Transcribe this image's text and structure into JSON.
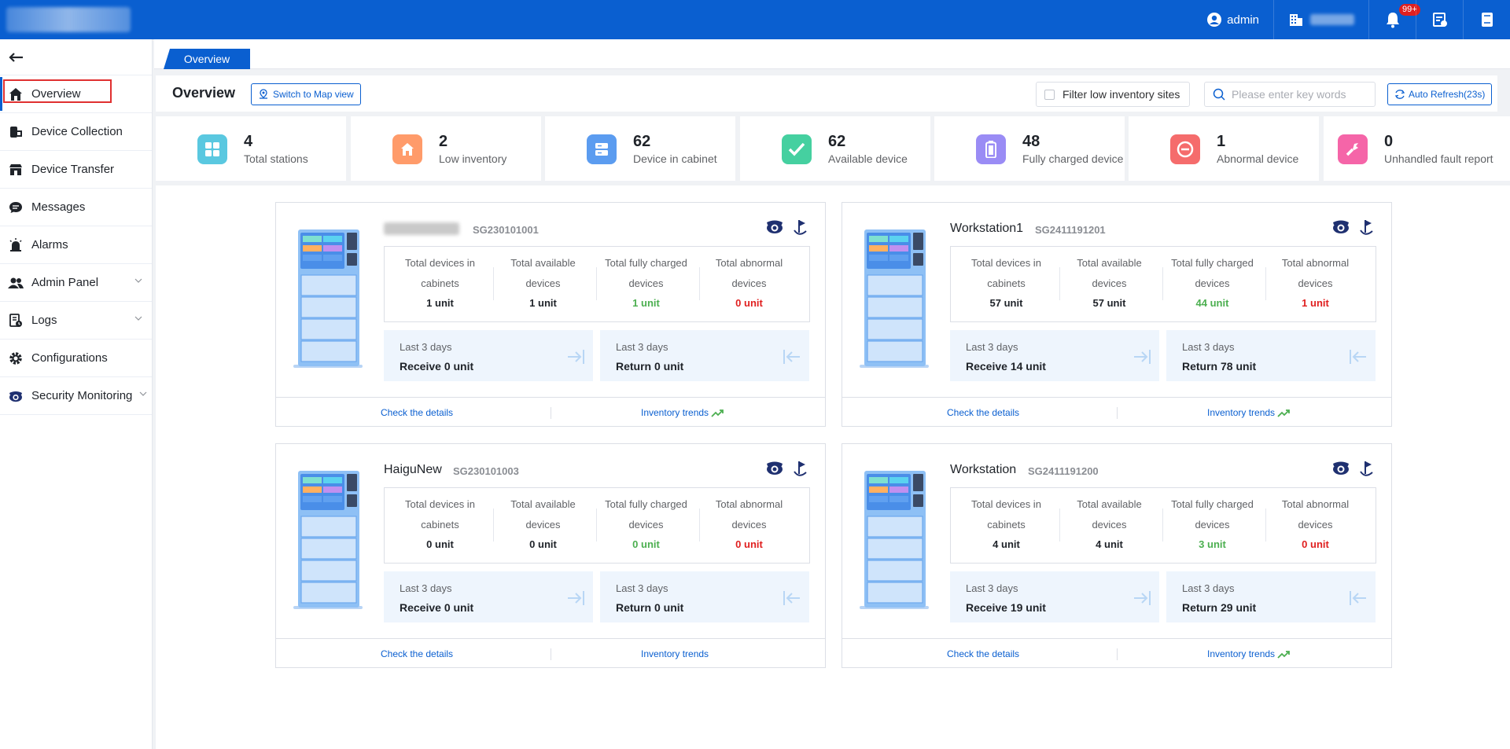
{
  "topbar": {
    "user": "admin",
    "notifications_badge": "99+"
  },
  "sidebar": {
    "items": [
      {
        "label": "Overview"
      },
      {
        "label": "Device Collection"
      },
      {
        "label": "Device Transfer"
      },
      {
        "label": "Messages"
      },
      {
        "label": "Alarms"
      },
      {
        "label": "Admin Panel"
      },
      {
        "label": "Logs"
      },
      {
        "label": "Configurations"
      },
      {
        "label": "Security Monitoring"
      }
    ]
  },
  "tabs": [
    {
      "label": "Overview"
    }
  ],
  "header": {
    "title": "Overview",
    "map_button": "Switch to Map view",
    "filter_label": "Filter low inventory sites",
    "search_placeholder": "Please enter key words",
    "refresh_label": "Auto Refresh(23s)"
  },
  "stats": [
    {
      "value": "4",
      "label": "Total stations",
      "color": "#5ac8e0"
    },
    {
      "value": "2",
      "label": "Low inventory",
      "color": "#ff9b6a"
    },
    {
      "value": "62",
      "label": "Device in cabinet",
      "color": "#5b9cf0"
    },
    {
      "value": "62",
      "label": "Available device",
      "color": "#45d0a0"
    },
    {
      "value": "48",
      "label": "Fully charged device",
      "color": "#9a8cf5"
    },
    {
      "value": "1",
      "label": "Abnormal device",
      "color": "#f56c6c"
    },
    {
      "value": "0",
      "label": "Unhandled fault report",
      "color": "#f565a8"
    }
  ],
  "labels": {
    "total_in_cabinets": "Total devices in cabinets",
    "total_available": "Total available devices",
    "total_charged": "Total fully charged devices",
    "total_abnormal": "Total abnormal devices",
    "last3": "Last 3 days",
    "check_details": "Check the details",
    "inventory_trends": "Inventory trends"
  },
  "stations": [
    {
      "name": "",
      "id": "SG230101001",
      "in_cabinet": "1 unit",
      "available": "1 unit",
      "charged": "1 unit",
      "abnormal": "0 unit",
      "receive": "Receive 0 unit",
      "return": "Return 0 unit"
    },
    {
      "name": "Workstation1",
      "id": "SG2411191201",
      "in_cabinet": "57 unit",
      "available": "57 unit",
      "charged": "44 unit",
      "abnormal": "1 unit",
      "receive": "Receive 14 unit",
      "return": "Return 78 unit"
    },
    {
      "name": "HaiguNew",
      "id": "SG230101003",
      "in_cabinet": "0 unit",
      "available": "0 unit",
      "charged": "0 unit",
      "abnormal": "0 unit",
      "receive": "Receive 0 unit",
      "return": "Return 0 unit"
    },
    {
      "name": "Workstation",
      "id": "SG2411191200",
      "in_cabinet": "4 unit",
      "available": "4 unit",
      "charged": "3 unit",
      "abnormal": "0 unit",
      "receive": "Receive 19 unit",
      "return": "Return 29 unit"
    }
  ]
}
